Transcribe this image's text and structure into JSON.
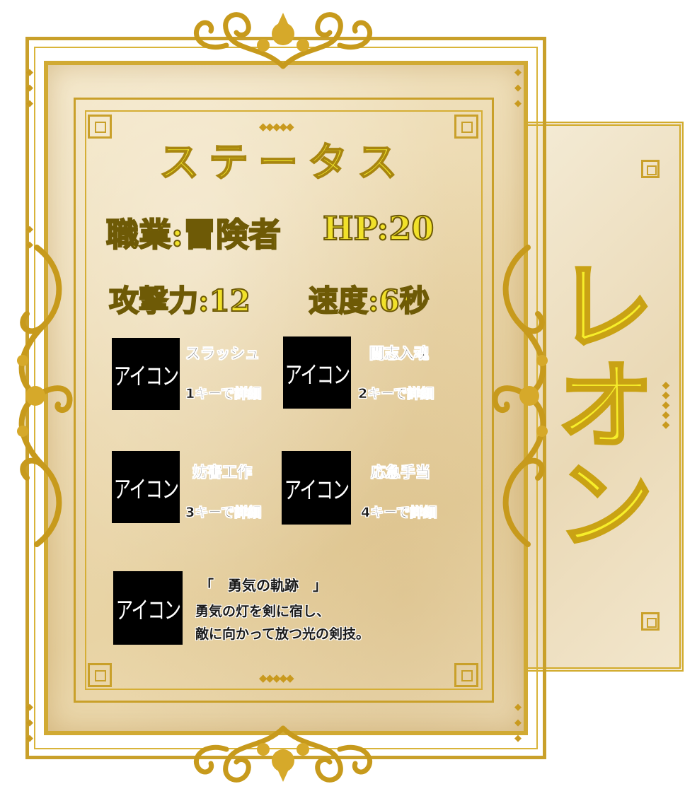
{
  "character": {
    "name": "レオン"
  },
  "status": {
    "title": "ステータス",
    "job_label": "職業:冒険者",
    "hp_label": "HP:20",
    "attack_label": "攻撃力:12",
    "speed_label": "速度:6秒"
  },
  "skills": [
    {
      "icon_label": "アイコン",
      "name": "スラッシュ",
      "key_hint": "1キーで詳細"
    },
    {
      "icon_label": "アイコン",
      "name": "闘志入魂",
      "key_hint": "2キーで詳細"
    },
    {
      "icon_label": "アイコン",
      "name": "妨害工作",
      "key_hint": "3キーで詳細"
    },
    {
      "icon_label": "アイコン",
      "name": "応急手当",
      "key_hint": "4キーで詳細"
    }
  ],
  "special": {
    "icon_label": "アイコン",
    "title": "「　勇気の軌跡　」",
    "description_line1": "勇気の灯を剣に宿し、",
    "description_line2": "敵に向かって放つ光の剣技。"
  },
  "colors": {
    "gold": "#c9a02a",
    "title_yellow": "#f5ec2c",
    "parchment": "#ead6aa"
  }
}
